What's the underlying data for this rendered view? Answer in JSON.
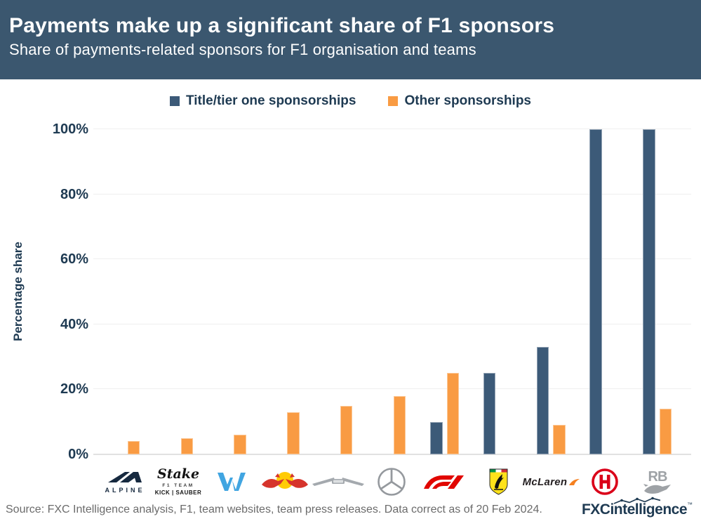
{
  "header": {
    "title": "Payments make up a significant share of F1 sponsors",
    "subtitle": "Share of payments-related sponsors for F1 organisation and teams"
  },
  "legend": [
    {
      "label": "Title/tier one sponsorships",
      "color": "#3C5A78"
    },
    {
      "label": "Other sponsorships",
      "color": "#F99B43"
    }
  ],
  "chart_data": {
    "type": "bar",
    "title": "Payments make up a significant share of F1 sponsors",
    "subtitle": "Share of payments-related sponsors for F1 organisation and teams",
    "xlabel": "",
    "ylabel": "Percentage share",
    "ylim": [
      0,
      100
    ],
    "yticks": [
      0,
      20,
      40,
      60,
      80,
      100
    ],
    "ytick_labels": [
      "0%",
      "20%",
      "40%",
      "60%",
      "80%",
      "100%"
    ],
    "grid": true,
    "legend_position": "top",
    "categories": [
      "Alpine",
      "Stake F1 Team Kick Sauber",
      "Williams",
      "Red Bull",
      "Aston Martin",
      "Mercedes",
      "F1",
      "Ferrari",
      "McLaren",
      "Haas",
      "RB"
    ],
    "series": [
      {
        "name": "Title/tier one sponsorships",
        "color": "#3C5A78",
        "values": [
          0,
          0,
          0,
          0,
          0,
          0,
          10,
          25,
          33,
          100,
          100
        ]
      },
      {
        "name": "Other sponsorships",
        "color": "#F99B43",
        "values": [
          4,
          5,
          6,
          13,
          15,
          18,
          25,
          0,
          9,
          0,
          14
        ]
      }
    ]
  },
  "logos": {
    "alpine": {
      "word": "ALPINE"
    },
    "stake": {
      "script": "Stake",
      "line2": "F1 TEAM",
      "line3": "KICK | SAUBER"
    },
    "mclaren": {
      "word": "McLaren"
    },
    "rb": {
      "word": "RB"
    }
  },
  "footer": {
    "source": "Source: FXC Intelligence analysis, F1, team websites, team press releases. Data correct as of 20 Feb 2024.",
    "brand_bold": "FXC",
    "brand_rest": "intelligence",
    "brand_tm": "™"
  },
  "colors": {
    "header_bg": "#3B576F",
    "title_blue": "#3C5A78",
    "other_orange": "#F99B43",
    "axis_text": "#1E3A52",
    "gridline": "#EFEFEF",
    "source_gray": "#6B6B6B",
    "brand_navy": "#1E3A52"
  }
}
